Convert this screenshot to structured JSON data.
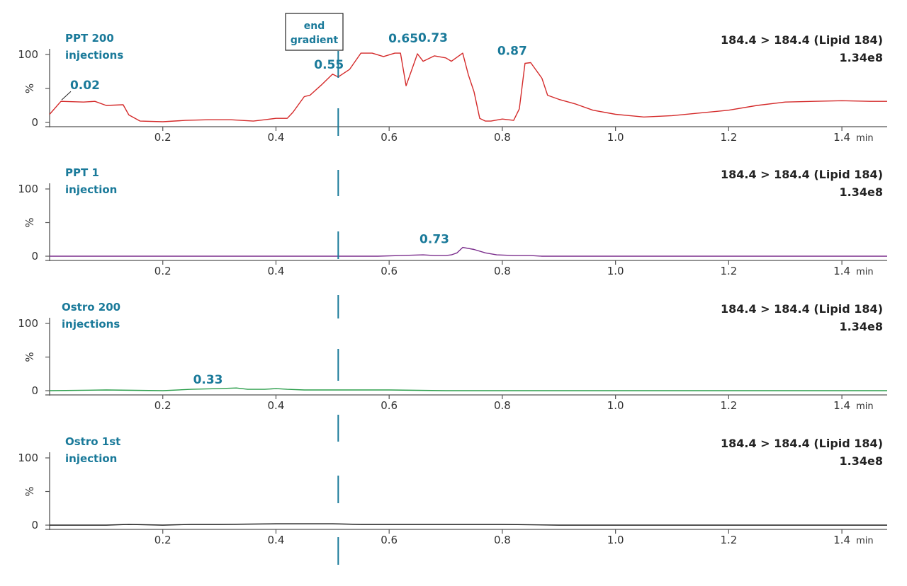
{
  "marker": {
    "label_line1": "end",
    "label_line2": "gradient",
    "x": 0.51,
    "color": "#1a7a9a"
  },
  "chart_data": [
    {
      "type": "line",
      "title_line1": "PPT 200",
      "title_line2": "injections",
      "transition": "184.4 > 184.4 (Lipid 184)",
      "intensity": "1.34e8",
      "ylabel": "%",
      "xunit": "min",
      "xlim": [
        0.0,
        1.48
      ],
      "ylim": [
        0,
        100
      ],
      "xticks": [
        "0.2",
        "0.4",
        "0.6",
        "0.8",
        "1.0",
        "1.2",
        "1.4"
      ],
      "yticks": [
        "0",
        "100"
      ],
      "color": "#d42a2a",
      "x": [
        0.0,
        0.02,
        0.06,
        0.08,
        0.1,
        0.13,
        0.14,
        0.16,
        0.2,
        0.24,
        0.28,
        0.32,
        0.36,
        0.38,
        0.4,
        0.42,
        0.43,
        0.45,
        0.46,
        0.48,
        0.5,
        0.51,
        0.53,
        0.55,
        0.57,
        0.59,
        0.61,
        0.62,
        0.63,
        0.65,
        0.66,
        0.68,
        0.7,
        0.71,
        0.73,
        0.74,
        0.75,
        0.76,
        0.77,
        0.78,
        0.8,
        0.82,
        0.83,
        0.84,
        0.85,
        0.87,
        0.88,
        0.9,
        0.93,
        0.96,
        1.0,
        1.05,
        1.1,
        1.15,
        1.2,
        1.25,
        1.3,
        1.35,
        1.4,
        1.45,
        1.48
      ],
      "y": [
        12,
        31,
        30,
        31,
        25,
        26,
        11,
        2,
        1,
        3,
        4,
        4,
        2,
        4,
        6,
        6,
        15,
        38,
        40,
        55,
        71,
        67,
        78,
        102,
        102,
        97,
        102,
        102,
        54,
        101,
        90,
        98,
        95,
        90,
        102,
        70,
        45,
        6,
        2,
        2,
        5,
        3,
        20,
        87,
        88,
        65,
        40,
        34,
        27,
        18,
        12,
        8,
        10,
        14,
        18,
        25,
        30,
        31,
        32,
        31,
        31
      ],
      "annotations": [
        {
          "text": "0.02",
          "x": 0.02,
          "y": 31
        },
        {
          "text": "0.55",
          "x": 0.55,
          "y": 102
        },
        {
          "text": "0.65",
          "x": 0.65,
          "y": 101
        },
        {
          "text": "0.73",
          "x": 0.73,
          "y": 102
        },
        {
          "text": "0.87",
          "x": 0.87,
          "y": 88
        }
      ]
    },
    {
      "type": "line",
      "title_line1": "PPT 1",
      "title_line2": "injection",
      "transition": "184.4 > 184.4 (Lipid 184)",
      "intensity": "1.34e8",
      "ylabel": "%",
      "xunit": "min",
      "xlim": [
        0.0,
        1.48
      ],
      "ylim": [
        0,
        100
      ],
      "xticks": [
        "0.2",
        "0.4",
        "0.6",
        "0.8",
        "1.0",
        "1.2",
        "1.4"
      ],
      "yticks": [
        "0",
        "100"
      ],
      "color": "#7a2d8c",
      "x": [
        0.0,
        0.2,
        0.3,
        0.5,
        0.58,
        0.62,
        0.66,
        0.68,
        0.7,
        0.71,
        0.72,
        0.73,
        0.75,
        0.77,
        0.79,
        0.82,
        0.85,
        0.87,
        1.0,
        1.48
      ],
      "y": [
        0,
        0,
        0,
        0,
        0,
        1,
        2,
        1,
        1,
        2,
        5,
        13,
        10,
        5,
        2,
        1,
        1,
        0,
        0,
        0
      ],
      "annotations": [
        {
          "text": "0.73",
          "x": 0.73,
          "y": 13
        }
      ]
    },
    {
      "type": "line",
      "title_line1": "Ostro 200",
      "title_line2": "injections",
      "transition": "184.4 > 184.4 (Lipid 184)",
      "intensity": "1.34e8",
      "ylabel": "%",
      "xunit": "min",
      "xlim": [
        0.0,
        1.48
      ],
      "ylim": [
        0,
        100
      ],
      "xticks": [
        "0.2",
        "0.4",
        "0.6",
        "0.8",
        "1.0",
        "1.2",
        "1.4"
      ],
      "yticks": [
        "0",
        "100"
      ],
      "color": "#2a9d4a",
      "x": [
        0.0,
        0.1,
        0.2,
        0.25,
        0.3,
        0.33,
        0.35,
        0.38,
        0.4,
        0.42,
        0.45,
        0.5,
        0.55,
        0.6,
        0.7,
        0.8,
        1.0,
        1.48
      ],
      "y": [
        0,
        1,
        0,
        2,
        3,
        4,
        2,
        2,
        3,
        2,
        1,
        1,
        1,
        1,
        0,
        0,
        0,
        0
      ],
      "annotations": [
        {
          "text": "0.33",
          "x": 0.33,
          "y": 4
        }
      ]
    },
    {
      "type": "line",
      "title_line1": "Ostro 1st",
      "title_line2": "injection",
      "transition": "184.4 > 184.4 (Lipid 184)",
      "intensity": "1.34e8",
      "ylabel": "%",
      "xunit": "min",
      "xlim": [
        0.0,
        1.48
      ],
      "ylim": [
        0,
        100
      ],
      "xticks": [
        "0.2",
        "0.4",
        "0.6",
        "0.8",
        "1.0",
        "1.2",
        "1.4"
      ],
      "yticks": [
        "0",
        "100"
      ],
      "color": "#1a1a1a",
      "x": [
        0.0,
        0.1,
        0.14,
        0.2,
        0.25,
        0.3,
        0.4,
        0.5,
        0.55,
        0.6,
        0.7,
        0.8,
        0.9,
        1.0,
        1.48
      ],
      "y": [
        0,
        0,
        1,
        0,
        1,
        1,
        2,
        2,
        1,
        1,
        1,
        1,
        0,
        0,
        0
      ],
      "annotations": []
    }
  ]
}
